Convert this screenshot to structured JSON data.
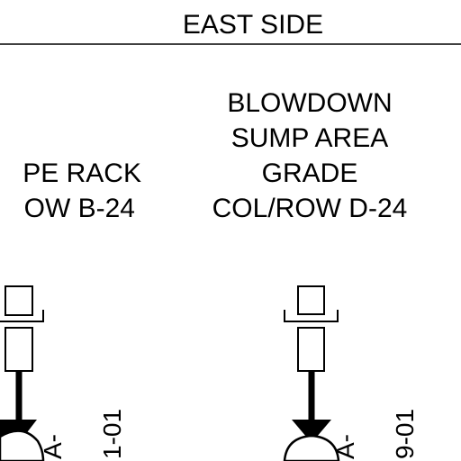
{
  "header": {
    "title": "EAST SIDE"
  },
  "locations": [
    {
      "lines": [
        "PE RACK",
        "OW B-24"
      ]
    },
    {
      "lines": [
        "BLOWDOWN",
        "SUMP AREA",
        "GRADE",
        "COL/ROW D-24"
      ]
    }
  ],
  "instruments": [
    {
      "tag_prefix": "A-",
      "tag_number": "1-01"
    },
    {
      "tag_prefix": "A-",
      "tag_number": "9-01"
    }
  ],
  "colors": {
    "ink": "#000000",
    "background": "#ffffff"
  }
}
